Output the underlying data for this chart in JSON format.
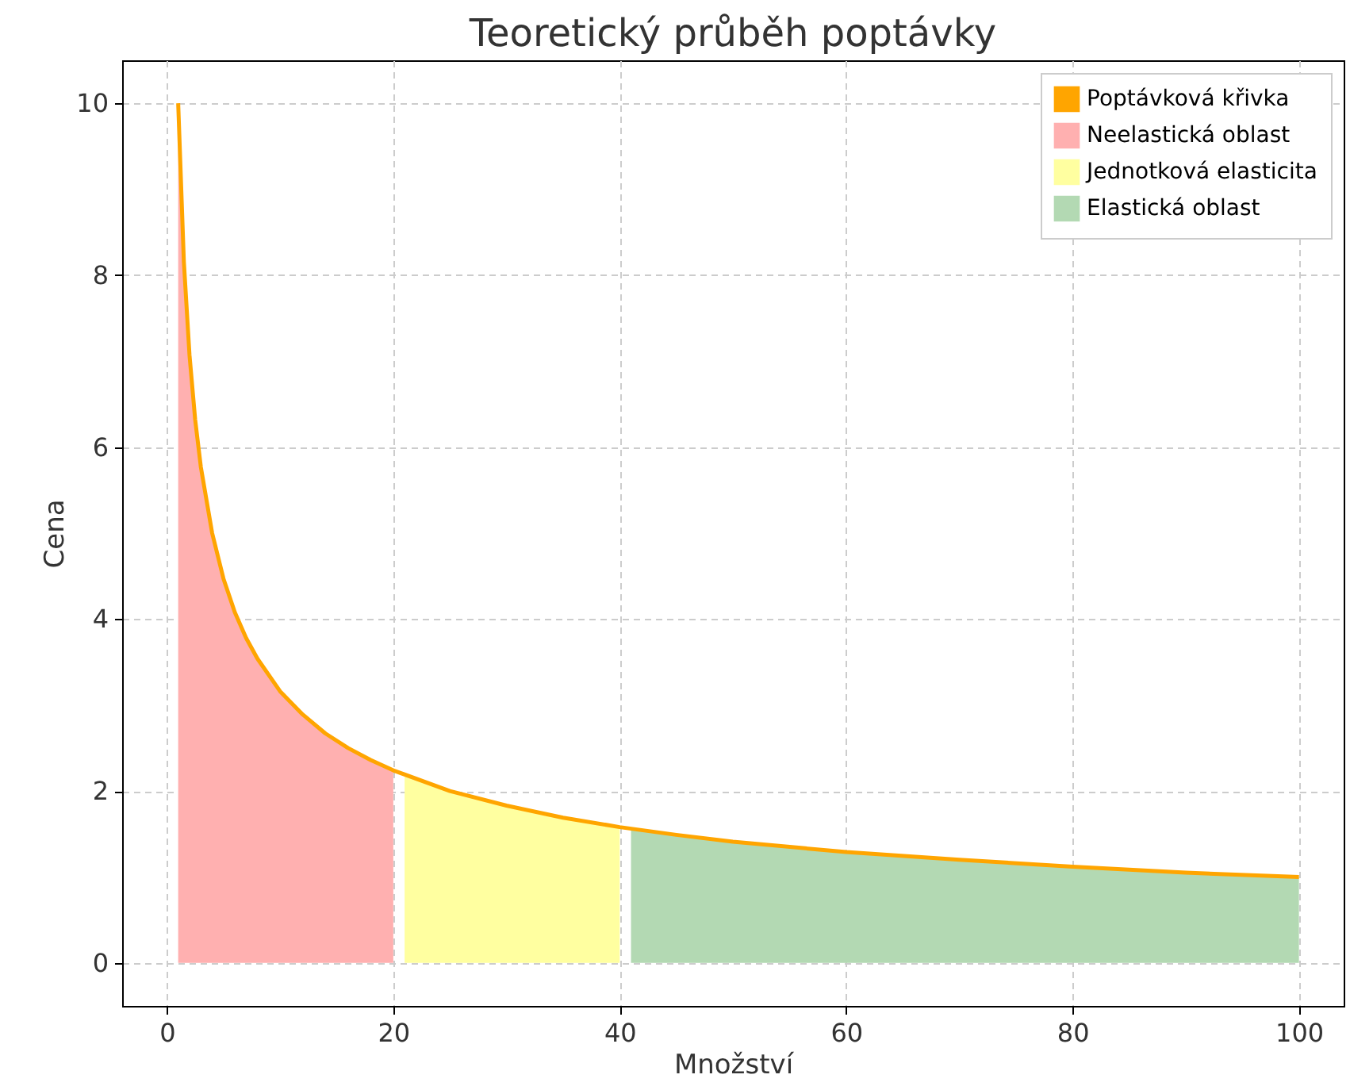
{
  "chart_data": {
    "type": "line",
    "title": "Teoretický průběh poptávky",
    "xlabel": "Množství",
    "ylabel": "Cena",
    "xlim": [
      -3.95,
      103.95
    ],
    "ylim": [
      -0.5,
      10.5
    ],
    "xticks": [
      0,
      20,
      40,
      60,
      80,
      100
    ],
    "yticks": [
      0,
      2,
      4,
      6,
      8,
      10
    ],
    "grid": true,
    "legend": "top right",
    "series": [
      {
        "name": "Poptávková křivka",
        "color": "#ffa500",
        "x": [
          1,
          1.5,
          2,
          2.5,
          3,
          4,
          5,
          6,
          7,
          8,
          10,
          12,
          14,
          16,
          18,
          20,
          25,
          30,
          35,
          40,
          45,
          50,
          60,
          70,
          80,
          90,
          100
        ],
        "values": [
          10,
          8.16,
          7.07,
          6.32,
          5.77,
          5,
          4.47,
          4.08,
          3.78,
          3.54,
          3.16,
          2.89,
          2.67,
          2.5,
          2.36,
          2.24,
          2,
          1.83,
          1.69,
          1.58,
          1.49,
          1.41,
          1.29,
          1.2,
          1.12,
          1.05,
          1
        ]
      },
      {
        "name": "Neelastická oblast",
        "type": "area",
        "color": "#ffb0b0",
        "x": [
          1,
          1.5,
          2,
          2.5,
          3,
          4,
          5,
          6,
          7,
          8,
          10,
          12,
          14,
          16,
          18,
          20
        ],
        "values": [
          10,
          8.16,
          7.07,
          6.32,
          5.77,
          5,
          4.47,
          4.08,
          3.78,
          3.54,
          3.16,
          2.89,
          2.67,
          2.5,
          2.36,
          2.24
        ]
      },
      {
        "name": "Jednotková elasticita",
        "type": "area",
        "color": "#ffffa0",
        "x": [
          21,
          25,
          30,
          35,
          40
        ],
        "values": [
          2.18,
          2,
          1.83,
          1.69,
          1.58
        ]
      },
      {
        "name": "Elastická oblast",
        "type": "area",
        "color": "#b3d9b3",
        "x": [
          41,
          45,
          50,
          60,
          70,
          80,
          90,
          100
        ],
        "values": [
          1.56,
          1.49,
          1.41,
          1.29,
          1.2,
          1.12,
          1.05,
          1
        ]
      }
    ]
  }
}
